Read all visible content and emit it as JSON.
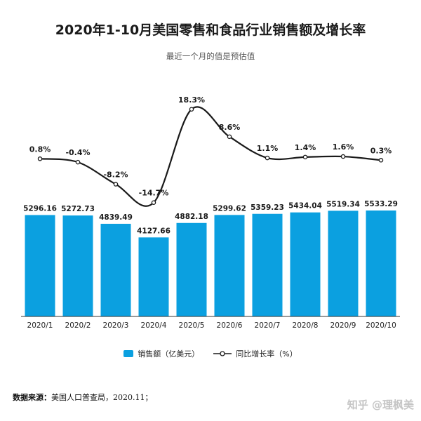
{
  "colors": {
    "bar": "#0ba0e0",
    "line": "#1a1a1a",
    "axis": "#333333"
  },
  "watermark": "知乎 @理枫美",
  "source": {
    "label": "数据来源：",
    "text": "美国人口普查局，2020.11；"
  },
  "chart_data": {
    "type": "bar",
    "title": "2020年1-10月美国零售和食品行业销售额及增长率",
    "subtitle": "最近一个月的值是预估值",
    "categories": [
      "2020/1",
      "2020/2",
      "2020/3",
      "2020/4",
      "2020/5",
      "2020/6",
      "2020/7",
      "2020/8",
      "2020/9",
      "2020/10"
    ],
    "series": [
      {
        "name": "销售额（亿美元）",
        "type": "bar",
        "values": [
          5296.16,
          5272.73,
          4839.49,
          4127.66,
          4882.18,
          5299.62,
          5359.23,
          5434.04,
          5519.34,
          5533.29
        ],
        "labels": [
          "5296.16",
          "5272.73",
          "4839.49",
          "4127.66",
          "4882.18",
          "5299.62",
          "5359.23",
          "5434.04",
          "5519.34",
          "5533.29"
        ]
      },
      {
        "name": "同比增长率（%）",
        "type": "line",
        "values": [
          0.8,
          -0.4,
          -8.2,
          -14.7,
          18.3,
          8.6,
          1.1,
          1.4,
          1.6,
          0.3
        ],
        "labels": [
          "0.8%",
          "-0.4%",
          "-8.2%",
          "-14.7%",
          "18.3%",
          "8.6%",
          "1.1%",
          "1.4%",
          "1.6%",
          "0.3%"
        ]
      }
    ],
    "legend_position": "bottom",
    "grid": false
  }
}
